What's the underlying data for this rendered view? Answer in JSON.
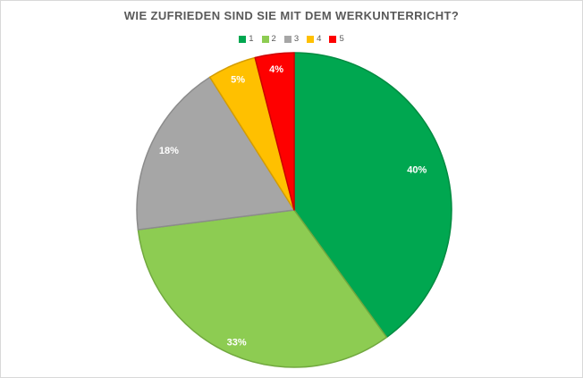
{
  "chart": {
    "frame_border_color": "#d9d9d9",
    "background_color": "#ffffff",
    "title_color": "#595959",
    "legend_text_color": "#595959"
  },
  "chart_data": {
    "type": "pie",
    "title": "WIE ZUFRIEDEN SIND SIE MIT DEM WERKUNTERRICHT?",
    "categories": [
      "1",
      "2",
      "3",
      "4",
      "5"
    ],
    "values": [
      40,
      33,
      18,
      5,
      4
    ],
    "unit": "%",
    "data_labels": [
      "40%",
      "33%",
      "18%",
      "5%",
      "4%"
    ],
    "slice_colors": [
      "#00a750",
      "#8dcc52",
      "#a6a6a6",
      "#ffc000",
      "#fe0000"
    ],
    "slice_border_colors": [
      "#008b41",
      "#71a83f",
      "#8c8c8c",
      "#d49d00",
      "#cc0000"
    ],
    "data_label_color": "#ffffff",
    "legend_position": "top",
    "start_angle_deg": 0,
    "clockwise": true,
    "label_radius_frac": [
      0.82,
      0.92,
      0.88,
      0.9,
      0.9
    ]
  }
}
